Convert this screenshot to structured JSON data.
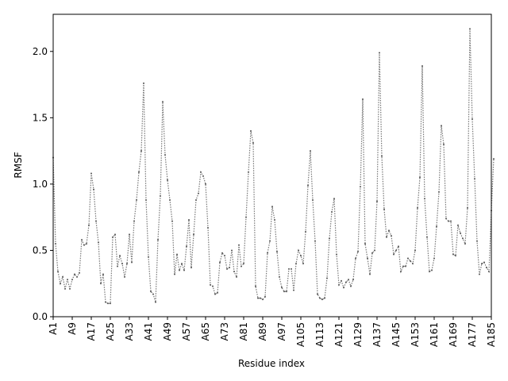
{
  "chart_data": {
    "type": "line",
    "title": "",
    "xlabel": "Residue index",
    "ylabel": "RMSF",
    "xlim": [
      1,
      185
    ],
    "ylim": [
      0.0,
      2.28
    ],
    "grid": false,
    "line_color": "#777777",
    "line_style": "dotted",
    "marker": "small dot",
    "x_tick_labels": [
      "A1",
      "A9",
      "A17",
      "A25",
      "A33",
      "A41",
      "A49",
      "A57",
      "A65",
      "A73",
      "A81",
      "A89",
      "A97",
      "A105",
      "A113",
      "A121",
      "A129",
      "A137",
      "A145",
      "A153",
      "A161",
      "A169",
      "A177",
      "A185"
    ],
    "x_tick_positions": [
      1,
      9,
      17,
      25,
      33,
      41,
      49,
      57,
      65,
      73,
      81,
      89,
      97,
      105,
      113,
      121,
      129,
      137,
      145,
      153,
      161,
      169,
      177,
      185
    ],
    "y_ticks": [
      0.0,
      0.5,
      1.0,
      1.5,
      2.0
    ],
    "y_tick_labels": [
      "0.0",
      "0.5",
      "1.0",
      "1.5",
      "2.0"
    ],
    "series": [
      {
        "values": [
          1.2,
          0.55,
          0.34,
          0.25,
          0.3,
          0.21,
          0.28,
          0.21,
          0.28,
          0.32,
          0.3,
          0.33,
          0.58,
          0.54,
          0.55,
          0.69,
          1.08,
          0.96,
          0.72,
          0.56,
          0.25,
          0.32,
          0.11,
          0.1,
          0.1,
          0.6,
          0.62,
          0.38,
          0.46,
          0.4,
          0.3,
          0.4,
          0.62,
          0.41,
          0.72,
          0.88,
          1.09,
          1.25,
          1.76,
          0.88,
          0.45,
          0.19,
          0.17,
          0.11,
          0.58,
          0.91,
          1.62,
          1.22,
          1.03,
          0.88,
          0.72,
          0.32,
          0.47,
          0.35,
          0.4,
          0.35,
          0.53,
          0.73,
          0.37,
          0.62,
          0.88,
          0.93,
          1.09,
          1.06,
          1.0,
          0.67,
          0.24,
          0.23,
          0.17,
          0.18,
          0.41,
          0.48,
          0.46,
          0.36,
          0.37,
          0.5,
          0.34,
          0.3,
          0.54,
          0.38,
          0.4,
          0.75,
          1.09,
          1.4,
          1.31,
          0.23,
          0.14,
          0.14,
          0.13,
          0.15,
          0.48,
          0.57,
          0.83,
          0.73,
          0.49,
          0.3,
          0.22,
          0.19,
          0.19,
          0.36,
          0.36,
          0.2,
          0.4,
          0.5,
          0.46,
          0.4,
          0.64,
          0.99,
          1.25,
          0.88,
          0.57,
          0.17,
          0.14,
          0.13,
          0.14,
          0.29,
          0.59,
          0.79,
          0.89,
          0.47,
          0.24,
          0.27,
          0.22,
          0.26,
          0.28,
          0.23,
          0.28,
          0.44,
          0.49,
          0.98,
          1.64,
          0.55,
          0.44,
          0.32,
          0.48,
          0.5,
          0.87,
          1.99,
          1.21,
          0.81,
          0.6,
          0.65,
          0.61,
          0.47,
          0.5,
          0.53,
          0.34,
          0.38,
          0.38,
          0.44,
          0.42,
          0.4,
          0.5,
          0.82,
          1.05,
          1.89,
          0.89,
          0.6,
          0.34,
          0.35,
          0.44,
          0.68,
          0.94,
          1.44,
          1.3,
          0.74,
          0.72,
          0.72,
          0.47,
          0.46,
          0.69,
          0.63,
          0.59,
          0.55,
          0.82,
          2.17,
          1.49,
          1.04,
          0.57,
          0.32,
          0.4,
          0.41,
          0.37,
          0.34,
          0.8,
          1.19
        ]
      }
    ]
  }
}
